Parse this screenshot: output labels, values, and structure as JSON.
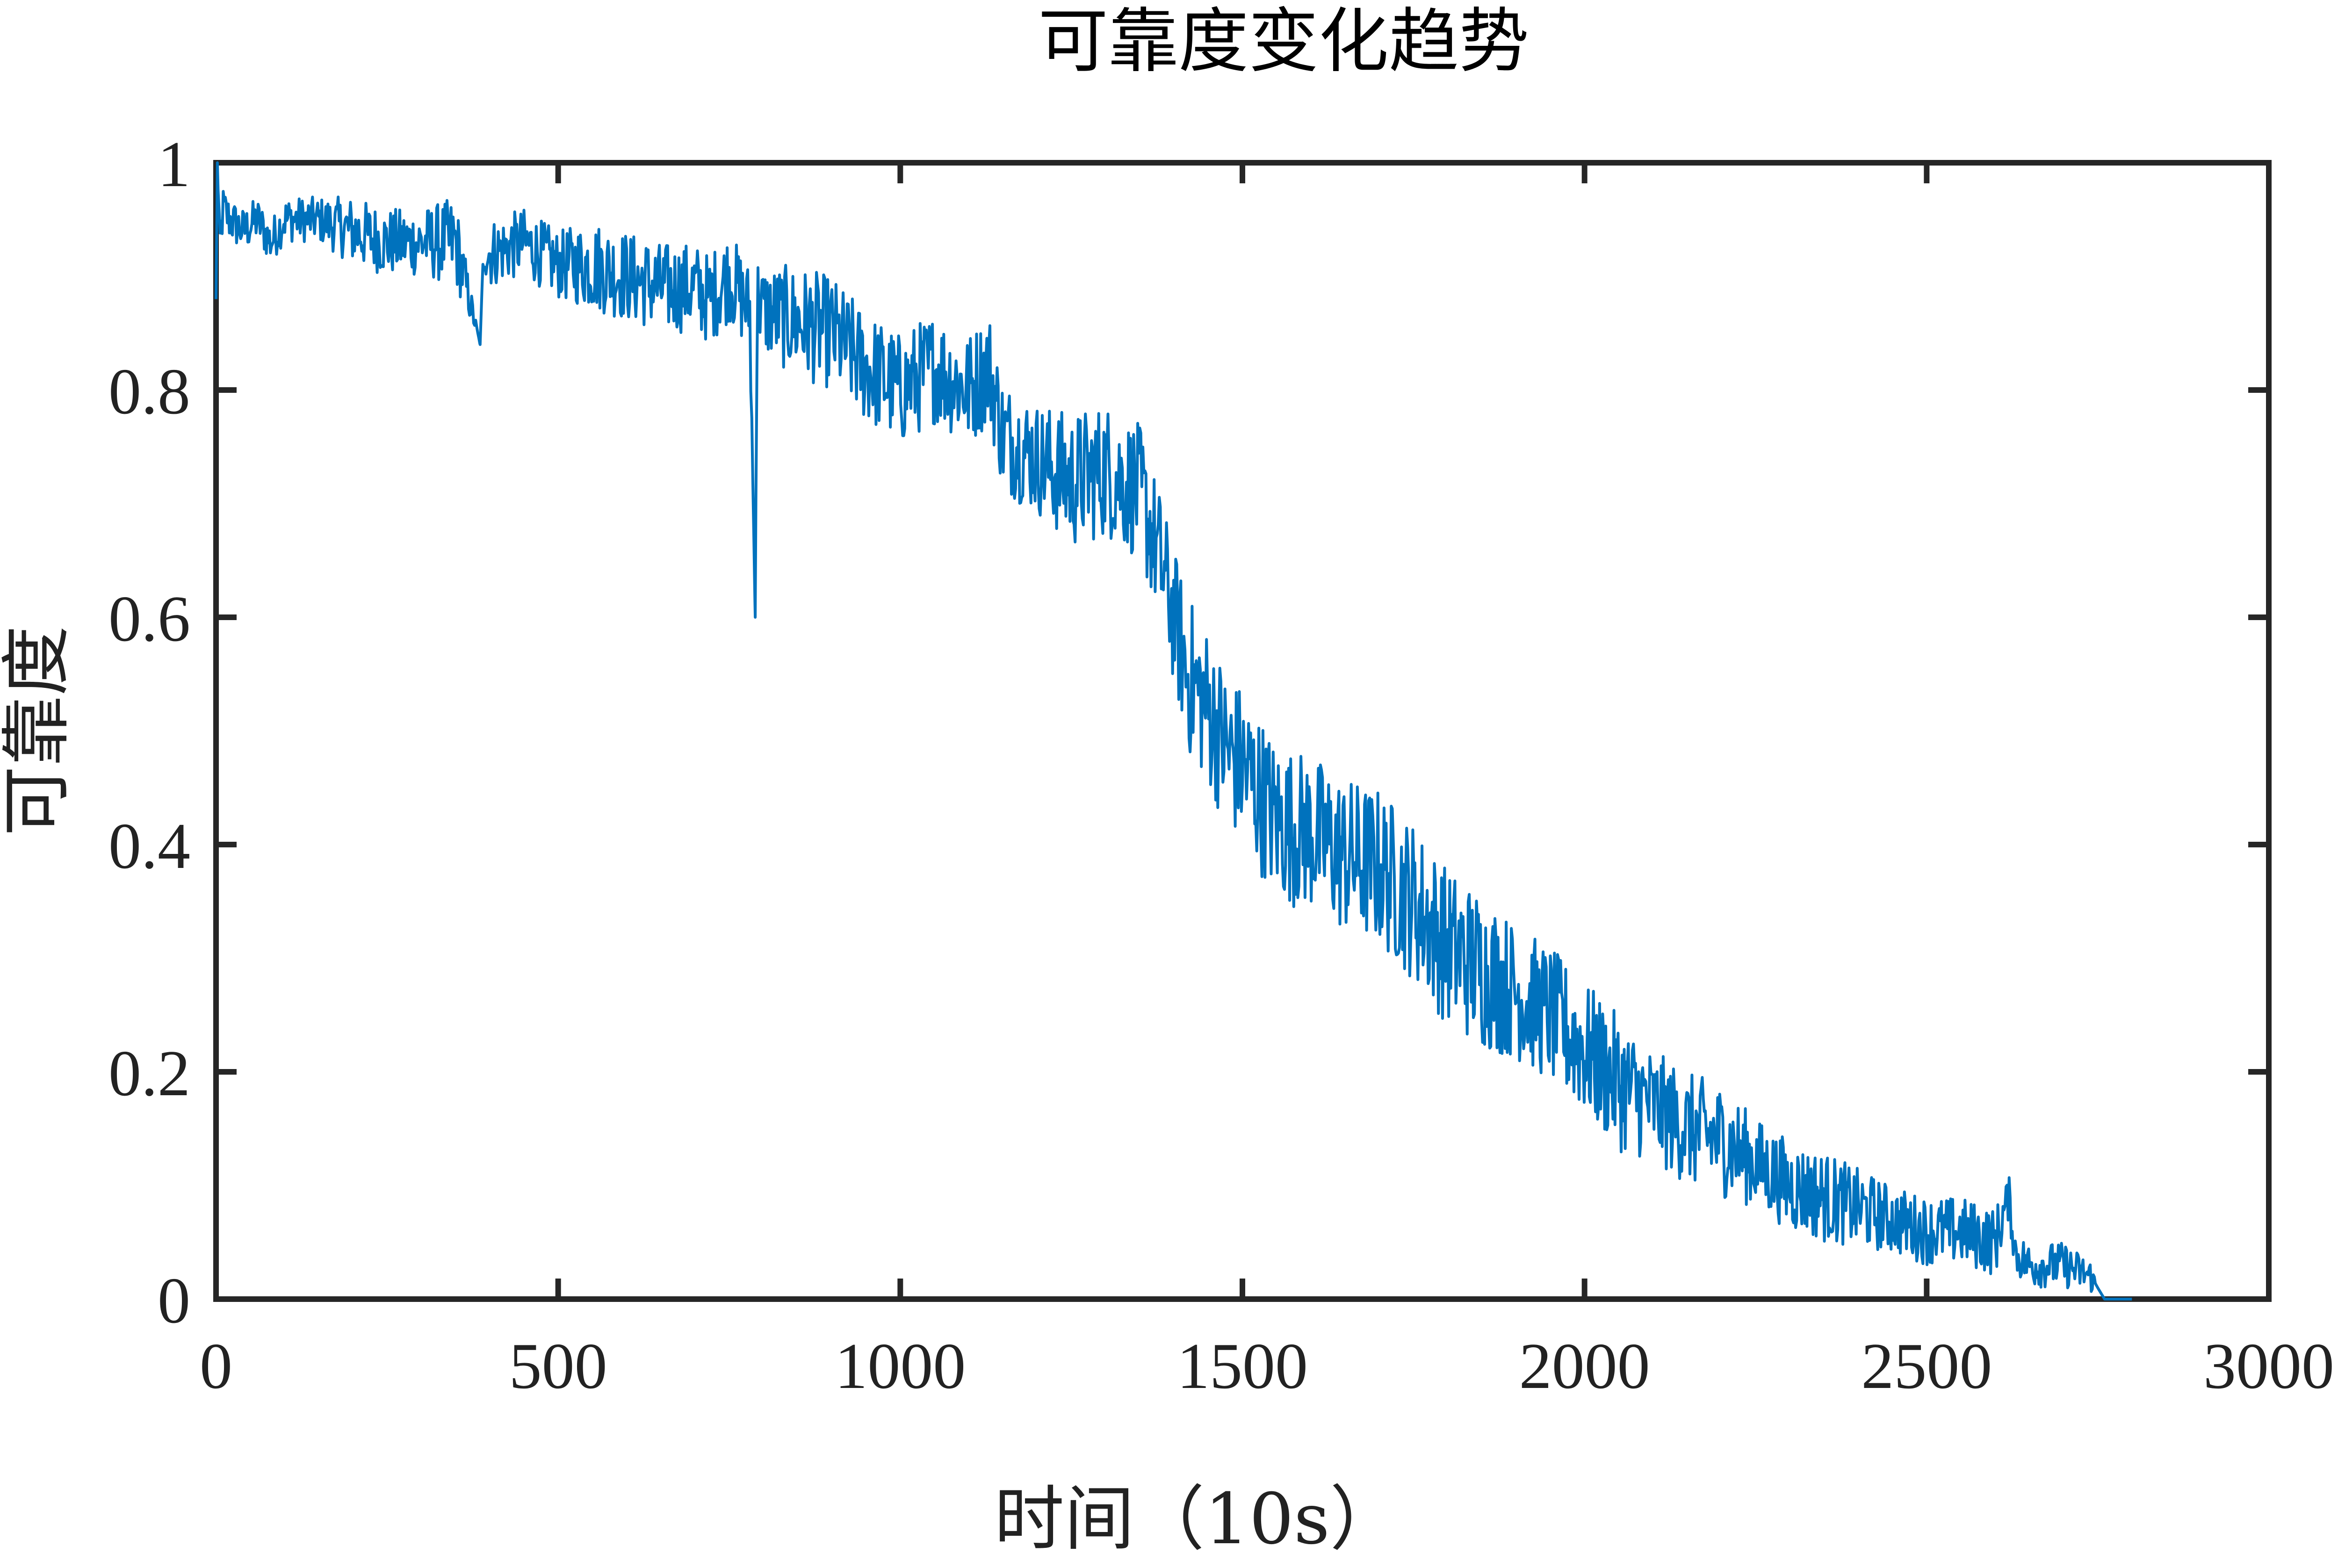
{
  "chart_data": {
    "type": "line",
    "title": "可靠度变化趋势",
    "xlabel": "时间（10s）",
    "ylabel": "可靠度",
    "xlim": [
      0,
      3000
    ],
    "ylim": [
      0,
      1
    ],
    "xticks": [
      0,
      500,
      1000,
      1500,
      2000,
      2500,
      3000
    ],
    "xtick_labels": [
      "0",
      "500",
      "1000",
      "1500",
      "2000",
      "2500",
      "3000"
    ],
    "yticks": [
      0,
      0.2,
      0.4,
      0.6,
      0.8,
      1
    ],
    "ytick_labels": [
      "0",
      "0.2",
      "0.4",
      "0.6",
      "0.8",
      "1"
    ],
    "grid": false,
    "line_color": "#0072BD",
    "series": [
      {
        "x": [
          0,
          2,
          5,
          10,
          20,
          40,
          60,
          80,
          100,
          150,
          200,
          250,
          300,
          350,
          386,
          392,
          400,
          450,
          500,
          550,
          600,
          650,
          700,
          720,
          750,
          780,
          788,
          790,
          792,
          800,
          850,
          900,
          950,
          1000,
          1050,
          1100,
          1130,
          1150,
          1200,
          1250,
          1300,
          1350,
          1380,
          1400,
          1420,
          1450,
          1480,
          1500,
          1550,
          1600,
          1650,
          1700,
          1750,
          1800,
          1850,
          1900,
          1950,
          2000,
          2050,
          2100,
          2150,
          2200,
          2250,
          2300,
          2350,
          2400,
          2450,
          2500,
          2550,
          2600,
          2620,
          2630,
          2650,
          2700,
          2740,
          2750,
          2760,
          2800
        ],
        "y": [
          0.88,
          1.0,
          0.92,
          0.96,
          0.95,
          0.94,
          0.95,
          0.93,
          0.95,
          0.95,
          0.94,
          0.93,
          0.93,
          0.93,
          0.84,
          0.93,
          0.92,
          0.93,
          0.91,
          0.91,
          0.9,
          0.89,
          0.89,
          0.88,
          0.9,
          0.87,
          0.6,
          0.82,
          0.88,
          0.87,
          0.86,
          0.85,
          0.82,
          0.8,
          0.82,
          0.8,
          0.82,
          0.76,
          0.74,
          0.72,
          0.73,
          0.71,
          0.65,
          0.6,
          0.55,
          0.52,
          0.48,
          0.47,
          0.42,
          0.41,
          0.39,
          0.38,
          0.35,
          0.31,
          0.29,
          0.27,
          0.25,
          0.22,
          0.19,
          0.17,
          0.15,
          0.14,
          0.12,
          0.1,
          0.09,
          0.08,
          0.07,
          0.06,
          0.06,
          0.05,
          0.09,
          0.04,
          0.03,
          0.03,
          0.02,
          0.01,
          0.0,
          0.0
        ],
        "noise_amplitude": [
          0,
          0,
          0.03,
          0.02,
          0.02,
          0.02,
          0.02,
          0.02,
          0.02,
          0.02,
          0.03,
          0.03,
          0.03,
          0.04,
          0,
          0.03,
          0.03,
          0.03,
          0.03,
          0.04,
          0.04,
          0.04,
          0.04,
          0.04,
          0.04,
          0.04,
          0,
          0.04,
          0.04,
          0.04,
          0.05,
          0.05,
          0.05,
          0.05,
          0.05,
          0.05,
          0.05,
          0.05,
          0.05,
          0.06,
          0.06,
          0.06,
          0.06,
          0.06,
          0.07,
          0.07,
          0.07,
          0.07,
          0.07,
          0.07,
          0.07,
          0.07,
          0.07,
          0.07,
          0.07,
          0.06,
          0.06,
          0.06,
          0.06,
          0.05,
          0.05,
          0.05,
          0.04,
          0.04,
          0.04,
          0.035,
          0.03,
          0.03,
          0.03,
          0.03,
          0.02,
          0.02,
          0.02,
          0.02,
          0.015,
          0,
          0,
          0
        ]
      }
    ]
  }
}
